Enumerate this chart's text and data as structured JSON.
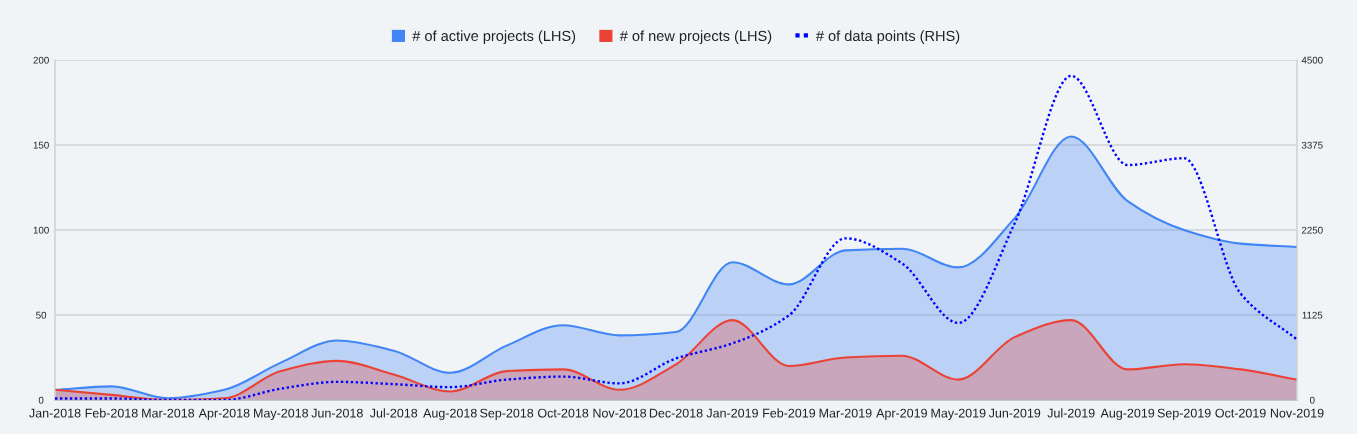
{
  "chart_data": {
    "type": "area",
    "categories": [
      "Jan-2018",
      "Feb-2018",
      "Mar-2018",
      "Apr-2018",
      "May-2018",
      "Jun-2018",
      "Jul-2018",
      "Aug-2018",
      "Sep-2018",
      "Oct-2018",
      "Nov-2018",
      "Dec-2018",
      "Jan-2019",
      "Feb-2019",
      "Mar-2019",
      "Apr-2019",
      "May-2019",
      "Jun-2019",
      "Jul-2019",
      "Aug-2019",
      "Sep-2019",
      "Oct-2019",
      "Nov-2019"
    ],
    "series": [
      {
        "name": "# of active projects (LHS)",
        "color": "#4285f4",
        "values": [
          6,
          8,
          1,
          6,
          22,
          35,
          29,
          16,
          32,
          44,
          38,
          40,
          81,
          68,
          88,
          89,
          78,
          107,
          155,
          117,
          100,
          92,
          90
        ]
      },
      {
        "name": "# of new projects (LHS)",
        "color": "#ea4335",
        "values": [
          6,
          3,
          0,
          1,
          17,
          23,
          15,
          5,
          17,
          18,
          6,
          21,
          47,
          20,
          25,
          26,
          12,
          37,
          47,
          18,
          21,
          18,
          12
        ]
      },
      {
        "name": "# of data points (RHS)",
        "type": "line",
        "axis": "y2",
        "color": "#0000ff",
        "line_style": "dotted",
        "values": [
          20,
          20,
          0,
          0,
          150,
          240,
          210,
          170,
          270,
          310,
          220,
          550,
          750,
          1120,
          2140,
          1810,
          1020,
          2340,
          4290,
          3110,
          3200,
          1410,
          800
        ]
      }
    ],
    "ylim": [
      0,
      200
    ],
    "yticks": [
      0,
      50,
      100,
      150,
      200
    ],
    "y2lim": [
      0,
      4500
    ],
    "y2ticks": [
      0,
      1125,
      2250,
      3375,
      4500
    ],
    "grid": "y",
    "legend": "top"
  }
}
